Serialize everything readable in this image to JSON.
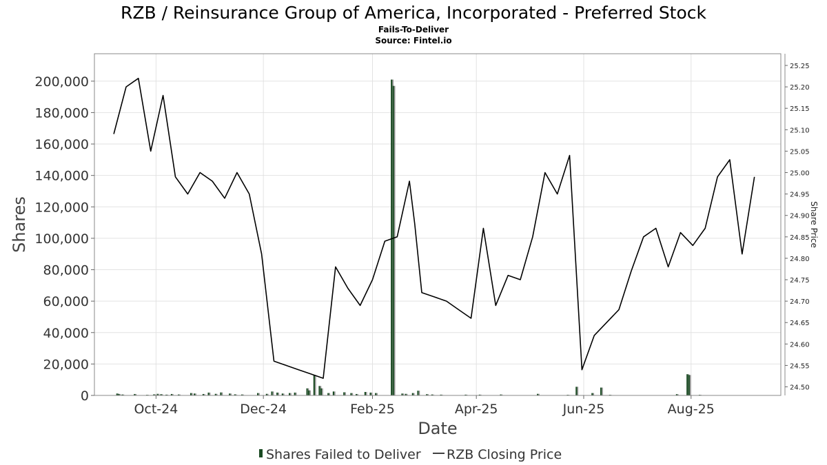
{
  "title": "RZB / Reinsurance Group of America, Incorporated - Preferred Stock",
  "subtitle": "Fails-To-Deliver",
  "source": "Source: Fintel.io",
  "colors": {
    "bars": "#1a4a22",
    "bars_alt": "#8a8a8a",
    "line": "#000000",
    "grid": "#e2e2e2"
  },
  "chart_data": {
    "type": "bar",
    "xlabel": "Date",
    "ylabel": "Shares",
    "y2label": "Share Price",
    "ylim": [
      0,
      210000
    ],
    "y2lim": [
      24.48,
      25.25
    ],
    "xlim": [
      "2024-08-27",
      "2025-09-21"
    ],
    "grid": true,
    "legend_position": "bottom",
    "yticks": [
      "0",
      "20,000",
      "40,000",
      "60,000",
      "80,000",
      "100,000",
      "120,000",
      "140,000",
      "160,000",
      "180,000",
      "200,000"
    ],
    "yticks_values": [
      0,
      20000,
      40000,
      60000,
      80000,
      100000,
      120000,
      140000,
      160000,
      180000,
      200000
    ],
    "y2ticks": [
      "24.50",
      "24.55",
      "24.60",
      "24.65",
      "24.70",
      "24.75",
      "24.80",
      "24.85",
      "24.90",
      "24.95",
      "25.00",
      "25.05",
      "25.10",
      "25.15",
      "25.20",
      "25.25"
    ],
    "y2ticks_values": [
      24.5,
      24.55,
      24.6,
      24.65,
      24.7,
      24.75,
      24.8,
      24.85,
      24.9,
      24.95,
      25.0,
      25.05,
      25.1,
      25.15,
      25.2,
      25.25
    ],
    "xticks": [
      {
        "label": "Oct-24",
        "date": "2024-10-01"
      },
      {
        "label": "Dec-24",
        "date": "2024-12-01"
      },
      {
        "label": "Feb-25",
        "date": "2025-02-01"
      },
      {
        "label": "Apr-25",
        "date": "2025-04-01"
      },
      {
        "label": "Jun-25",
        "date": "2025-06-01"
      },
      {
        "label": "Aug-25",
        "date": "2025-08-01"
      }
    ],
    "series": [
      {
        "name": "Shares Failed to Deliver",
        "type": "bar",
        "points": [
          [
            "2024-09-09",
            1200
          ],
          [
            "2024-09-10",
            900
          ],
          [
            "2024-09-12",
            600
          ],
          [
            "2024-09-19",
            900
          ],
          [
            "2024-09-26",
            400
          ],
          [
            "2024-09-30",
            700
          ],
          [
            "2024-10-02",
            1000
          ],
          [
            "2024-10-04",
            800
          ],
          [
            "2024-10-07",
            500
          ],
          [
            "2024-10-10",
            900
          ],
          [
            "2024-10-14",
            600
          ],
          [
            "2024-10-21",
            1500
          ],
          [
            "2024-10-23",
            1200
          ],
          [
            "2024-10-28",
            900
          ],
          [
            "2024-10-31",
            1800
          ],
          [
            "2024-11-04",
            1000
          ],
          [
            "2024-11-07",
            1900
          ],
          [
            "2024-11-12",
            1200
          ],
          [
            "2024-11-15",
            700
          ],
          [
            "2024-11-19",
            600
          ],
          [
            "2024-11-28",
            1500
          ],
          [
            "2024-12-03",
            1000
          ],
          [
            "2024-12-06",
            2500
          ],
          [
            "2024-12-09",
            1800
          ],
          [
            "2024-12-12",
            1200
          ],
          [
            "2024-12-16",
            1500
          ],
          [
            "2024-12-19",
            1800
          ],
          [
            "2024-12-26",
            4500
          ],
          [
            "2024-12-27",
            3200
          ],
          [
            "2024-12-30",
            13000
          ],
          [
            "2025-01-02",
            6000
          ],
          [
            "2025-01-03",
            4500
          ],
          [
            "2025-01-07",
            1500
          ],
          [
            "2025-01-10",
            2500
          ],
          [
            "2025-01-16",
            2000
          ],
          [
            "2025-01-20",
            1500
          ],
          [
            "2025-01-23",
            900
          ],
          [
            "2025-01-28",
            2200
          ],
          [
            "2025-01-31",
            1800
          ],
          [
            "2025-02-03",
            1500
          ],
          [
            "2025-02-12",
            201000
          ],
          [
            "2025-02-13",
            197000
          ],
          [
            "2025-02-18",
            1200
          ],
          [
            "2025-02-20",
            1000
          ],
          [
            "2025-02-24",
            1500
          ],
          [
            "2025-02-27",
            3000
          ],
          [
            "2025-03-04",
            800
          ],
          [
            "2025-03-07",
            600
          ],
          [
            "2025-03-12",
            500
          ],
          [
            "2025-03-26",
            500
          ],
          [
            "2025-04-03",
            500
          ],
          [
            "2025-04-15",
            600
          ],
          [
            "2025-05-06",
            1000
          ],
          [
            "2025-05-23",
            400
          ],
          [
            "2025-05-28",
            5500
          ],
          [
            "2025-06-06",
            1500
          ],
          [
            "2025-06-11",
            5000
          ],
          [
            "2025-06-16",
            400
          ],
          [
            "2025-07-24",
            800
          ],
          [
            "2025-07-30",
            13500
          ],
          [
            "2025-07-31",
            13000
          ],
          [
            "2025-08-06",
            400
          ]
        ]
      },
      {
        "name": "RZB Closing Price",
        "type": "line",
        "points": [
          [
            "2024-09-07",
            25.09
          ],
          [
            "2024-09-14",
            25.2
          ],
          [
            "2024-09-21",
            25.22
          ],
          [
            "2024-09-28",
            25.05
          ],
          [
            "2024-10-05",
            25.18
          ],
          [
            "2024-10-12",
            24.99
          ],
          [
            "2024-10-19",
            24.95
          ],
          [
            "2024-10-26",
            25.0
          ],
          [
            "2024-11-02",
            24.98
          ],
          [
            "2024-11-09",
            24.94
          ],
          [
            "2024-11-16",
            25.0
          ],
          [
            "2024-11-23",
            24.95
          ],
          [
            "2024-11-30",
            24.81
          ],
          [
            "2024-12-07",
            24.56
          ],
          [
            "2024-12-14",
            24.55
          ],
          [
            "2024-12-21",
            24.54
          ],
          [
            "2024-12-28",
            24.53
          ],
          [
            "2025-01-04",
            24.52
          ],
          [
            "2025-01-11",
            24.78
          ],
          [
            "2025-01-18",
            24.73
          ],
          [
            "2025-01-25",
            24.69
          ],
          [
            "2025-02-01",
            24.75
          ],
          [
            "2025-02-08",
            24.84
          ],
          [
            "2025-02-15",
            24.85
          ],
          [
            "2025-02-22",
            24.98
          ],
          [
            "2025-02-25",
            24.88
          ],
          [
            "2025-03-01",
            24.72
          ],
          [
            "2025-03-08",
            24.71
          ],
          [
            "2025-03-15",
            24.7
          ],
          [
            "2025-03-22",
            24.68
          ],
          [
            "2025-03-29",
            24.66
          ],
          [
            "2025-04-05",
            24.87
          ],
          [
            "2025-04-12",
            24.69
          ],
          [
            "2025-04-19",
            24.76
          ],
          [
            "2025-04-26",
            24.75
          ],
          [
            "2025-05-03",
            24.85
          ],
          [
            "2025-05-10",
            25.0
          ],
          [
            "2025-05-17",
            24.95
          ],
          [
            "2025-05-24",
            25.04
          ],
          [
            "2025-05-31",
            24.54
          ],
          [
            "2025-06-07",
            24.62
          ],
          [
            "2025-06-14",
            24.65
          ],
          [
            "2025-06-21",
            24.68
          ],
          [
            "2025-06-28",
            24.77
          ],
          [
            "2025-07-05",
            24.85
          ],
          [
            "2025-07-12",
            24.87
          ],
          [
            "2025-07-19",
            24.78
          ],
          [
            "2025-07-26",
            24.86
          ],
          [
            "2025-08-02",
            24.83
          ],
          [
            "2025-08-09",
            24.87
          ],
          [
            "2025-08-16",
            24.99
          ],
          [
            "2025-08-23",
            25.03
          ],
          [
            "2025-08-30",
            24.81
          ],
          [
            "2025-09-06",
            24.99
          ]
        ]
      }
    ],
    "legend": [
      "Shares Failed to Deliver",
      "RZB Closing Price"
    ]
  }
}
